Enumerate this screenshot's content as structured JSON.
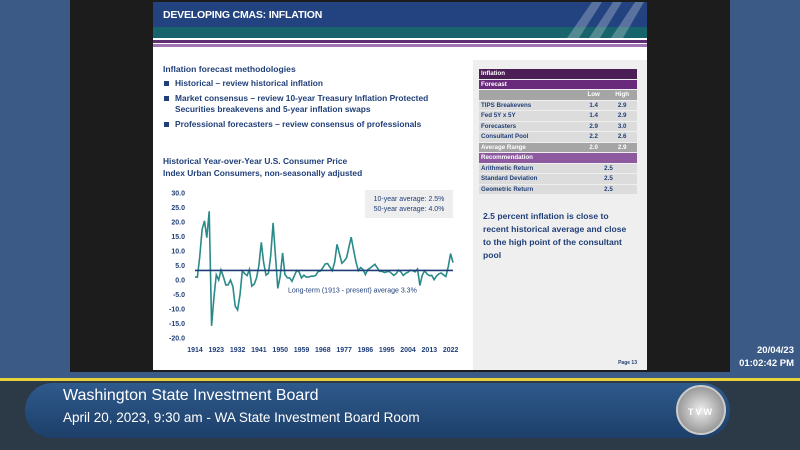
{
  "slide": {
    "title": "DEVELOPING CMAS: INFLATION",
    "methodologies_heading": "Inflation forecast methodologies",
    "bullets": [
      "Historical – review historical inflation",
      "Market consensus – review 10-year Treasury Inflation Protected Securities breakevens and 5-year inflation swaps",
      "Professional forecasters – review consensus of professionals"
    ],
    "chart_title": "Historical Year-over-Year U.S. Consumer Price Index Urban Consumers, non-seasonally adjusted",
    "table": {
      "header": "Inflation",
      "forecast_label": "Forecast",
      "col_low": "Low",
      "col_high": "High",
      "rows": [
        {
          "label": "TIPS Breakevens",
          "low": "1.4",
          "high": "2.9"
        },
        {
          "label": "Fed 5Y x 5Y",
          "low": "1.4",
          "high": "2.9"
        },
        {
          "label": "Forecasters",
          "low": "2.9",
          "high": "3.0"
        },
        {
          "label": "Consultant Pool",
          "low": "2.2",
          "high": "2.6"
        }
      ],
      "average": {
        "label": "Average Range",
        "low": "2.0",
        "high": "2.9"
      },
      "recommendation_label": "Recommendation",
      "rec_rows": [
        {
          "label": "Arithmetic Return",
          "value": "2.5"
        },
        {
          "label": "Standard Deviation",
          "value": "2.5"
        },
        {
          "label": "Geometric Return",
          "value": "2.5"
        }
      ]
    },
    "note": "2.5 percent inflation is close to recent historical average and close to the high point of the consultant pool",
    "page": "Page 13"
  },
  "chart_data": {
    "type": "line",
    "ylim": [
      -20,
      30
    ],
    "yticks": [
      "30.0",
      "25.0",
      "20.0",
      "15.0",
      "10.0",
      "5.0",
      "0.0",
      "-5.0",
      "-10.0",
      "-15.0",
      "-20.0"
    ],
    "xticks": [
      "1914",
      "1923",
      "1932",
      "1941",
      "1950",
      "1959",
      "1968",
      "1977",
      "1986",
      "1995",
      "2004",
      "2013",
      "2022"
    ],
    "line_color": "#2a8a8a",
    "avg_line_color": "#203f78",
    "long_term_average": 3.3,
    "avg_label": "Long-term (1913 - present) average 3.3%",
    "legend_box": [
      "10-year average: 2.5%",
      "50-year average: 4.0%"
    ],
    "x": [
      1914,
      1915,
      1916,
      1917,
      1918,
      1919,
      1920,
      1921,
      1922,
      1923,
      1924,
      1925,
      1926,
      1927,
      1928,
      1929,
      1930,
      1931,
      1932,
      1933,
      1934,
      1935,
      1936,
      1937,
      1938,
      1939,
      1940,
      1941,
      1942,
      1943,
      1944,
      1945,
      1946,
      1947,
      1948,
      1949,
      1950,
      1951,
      1952,
      1953,
      1954,
      1955,
      1956,
      1957,
      1958,
      1959,
      1960,
      1961,
      1962,
      1963,
      1964,
      1965,
      1966,
      1967,
      1968,
      1969,
      1970,
      1971,
      1972,
      1973,
      1974,
      1975,
      1976,
      1977,
      1978,
      1979,
      1980,
      1981,
      1982,
      1983,
      1984,
      1985,
      1986,
      1987,
      1988,
      1989,
      1990,
      1991,
      1992,
      1993,
      1994,
      1995,
      1996,
      1997,
      1998,
      1999,
      2000,
      2001,
      2002,
      2003,
      2004,
      2005,
      2006,
      2007,
      2008,
      2009,
      2010,
      2011,
      2012,
      2013,
      2014,
      2015,
      2016,
      2017,
      2018,
      2019,
      2020,
      2021,
      2022,
      2023
    ],
    "values": [
      1.0,
      1.0,
      7.9,
      17.4,
      20.4,
      14.6,
      23.7,
      -15.8,
      -6.1,
      1.8,
      0.0,
      3.5,
      1.1,
      -1.7,
      -1.7,
      0.0,
      -2.3,
      -9.0,
      -10.3,
      -5.1,
      3.1,
      2.2,
      1.5,
      3.6,
      -2.1,
      -1.4,
      0.7,
      5.0,
      13.0,
      6.1,
      1.7,
      2.3,
      8.3,
      19.7,
      8.1,
      -2.9,
      1.3,
      9.3,
      1.9,
      0.8,
      0.7,
      -0.4,
      1.5,
      3.3,
      2.8,
      0.7,
      1.7,
      1.0,
      1.0,
      1.3,
      1.3,
      1.6,
      2.9,
      3.1,
      4.2,
      5.5,
      5.7,
      4.4,
      3.2,
      6.2,
      12.3,
      9.1,
      5.8,
      6.5,
      7.6,
      11.3,
      14.8,
      10.3,
      6.2,
      3.2,
      4.3,
      3.6,
      1.9,
      3.6,
      4.1,
      4.8,
      5.4,
      4.2,
      3.0,
      3.0,
      2.6,
      2.8,
      3.0,
      2.3,
      1.6,
      2.2,
      3.4,
      2.8,
      1.6,
      2.3,
      2.7,
      3.4,
      3.2,
      2.8,
      3.8,
      -1.9,
      1.6,
      3.2,
      2.1,
      1.5,
      1.6,
      0.1,
      1.3,
      2.1,
      2.4,
      1.8,
      1.2,
      4.7,
      9.1,
      6.0
    ]
  },
  "broadcast": {
    "title": "Washington State Investment Board",
    "subtitle": "April 20, 2023, 9:30 am - WA State Investment Board Room",
    "logo_text": "TVW",
    "date": "20/04/23",
    "time": "01:02:42 PM"
  }
}
